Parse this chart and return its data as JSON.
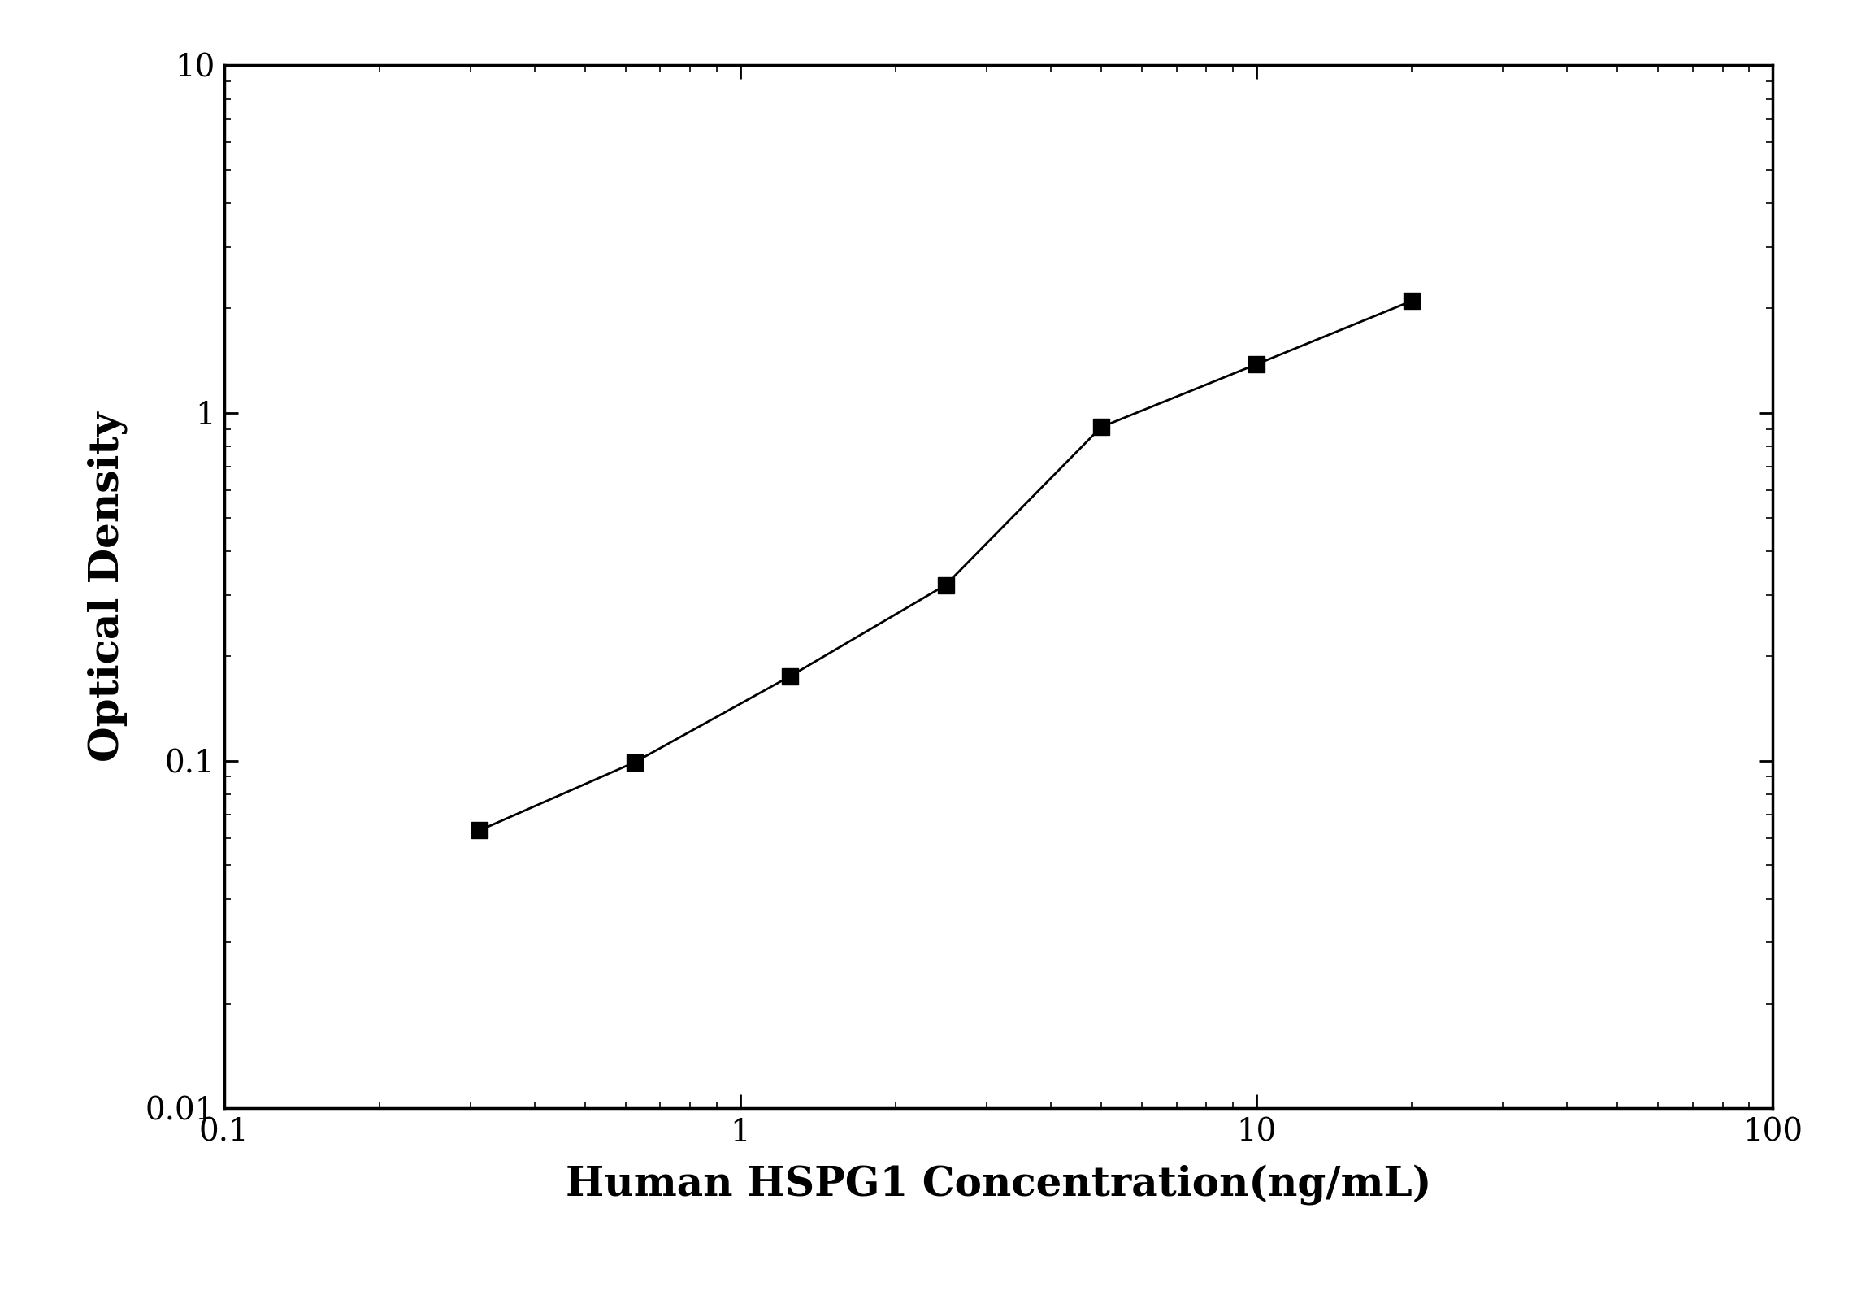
{
  "x_data": [
    0.3125,
    0.625,
    1.25,
    2.5,
    5,
    10,
    20
  ],
  "y_data": [
    0.063,
    0.099,
    0.175,
    0.32,
    0.91,
    1.38,
    2.1
  ],
  "xlabel": "Human HSPG1 Concentration(ng/mL)",
  "ylabel": "Optical Density",
  "xlim": [
    0.1,
    100
  ],
  "ylim": [
    0.01,
    10
  ],
  "x_ticks": [
    0.1,
    1,
    10,
    100
  ],
  "y_ticks": [
    0.01,
    0.1,
    1,
    10
  ],
  "line_color": "#000000",
  "marker": "s",
  "marker_color": "#000000",
  "marker_size": 14,
  "linewidth": 2.0,
  "xlabel_fontsize": 36,
  "ylabel_fontsize": 36,
  "tick_fontsize": 28,
  "background_color": "#ffffff",
  "spine_linewidth": 2.5
}
